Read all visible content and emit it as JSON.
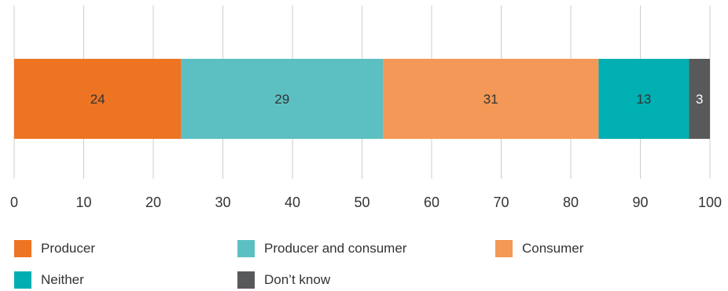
{
  "chart_data": {
    "type": "bar",
    "orientation": "horizontal",
    "stacked": true,
    "title": "",
    "xlabel": "",
    "ylabel": "",
    "xlim": [
      0,
      100
    ],
    "x_ticks": [
      "0",
      "10",
      "20",
      "30",
      "40",
      "50",
      "60",
      "70",
      "80",
      "90",
      "100"
    ],
    "grid": "vertical",
    "legend_position": "bottom",
    "series": [
      {
        "name": "Producer",
        "values": [
          24
        ],
        "color": "#ec7422",
        "label_color": "#333333"
      },
      {
        "name": "Producer and consumer",
        "values": [
          29
        ],
        "color": "#5cc0c2",
        "label_color": "#333333"
      },
      {
        "name": "Consumer",
        "values": [
          31
        ],
        "color": "#f39856",
        "label_color": "#333333"
      },
      {
        "name": "Neither",
        "values": [
          13
        ],
        "color": "#00afb2",
        "label_color": "#333333"
      },
      {
        "name": "Don’t know",
        "values": [
          3
        ],
        "color": "#58595b",
        "label_color": "#ffffff"
      }
    ]
  }
}
